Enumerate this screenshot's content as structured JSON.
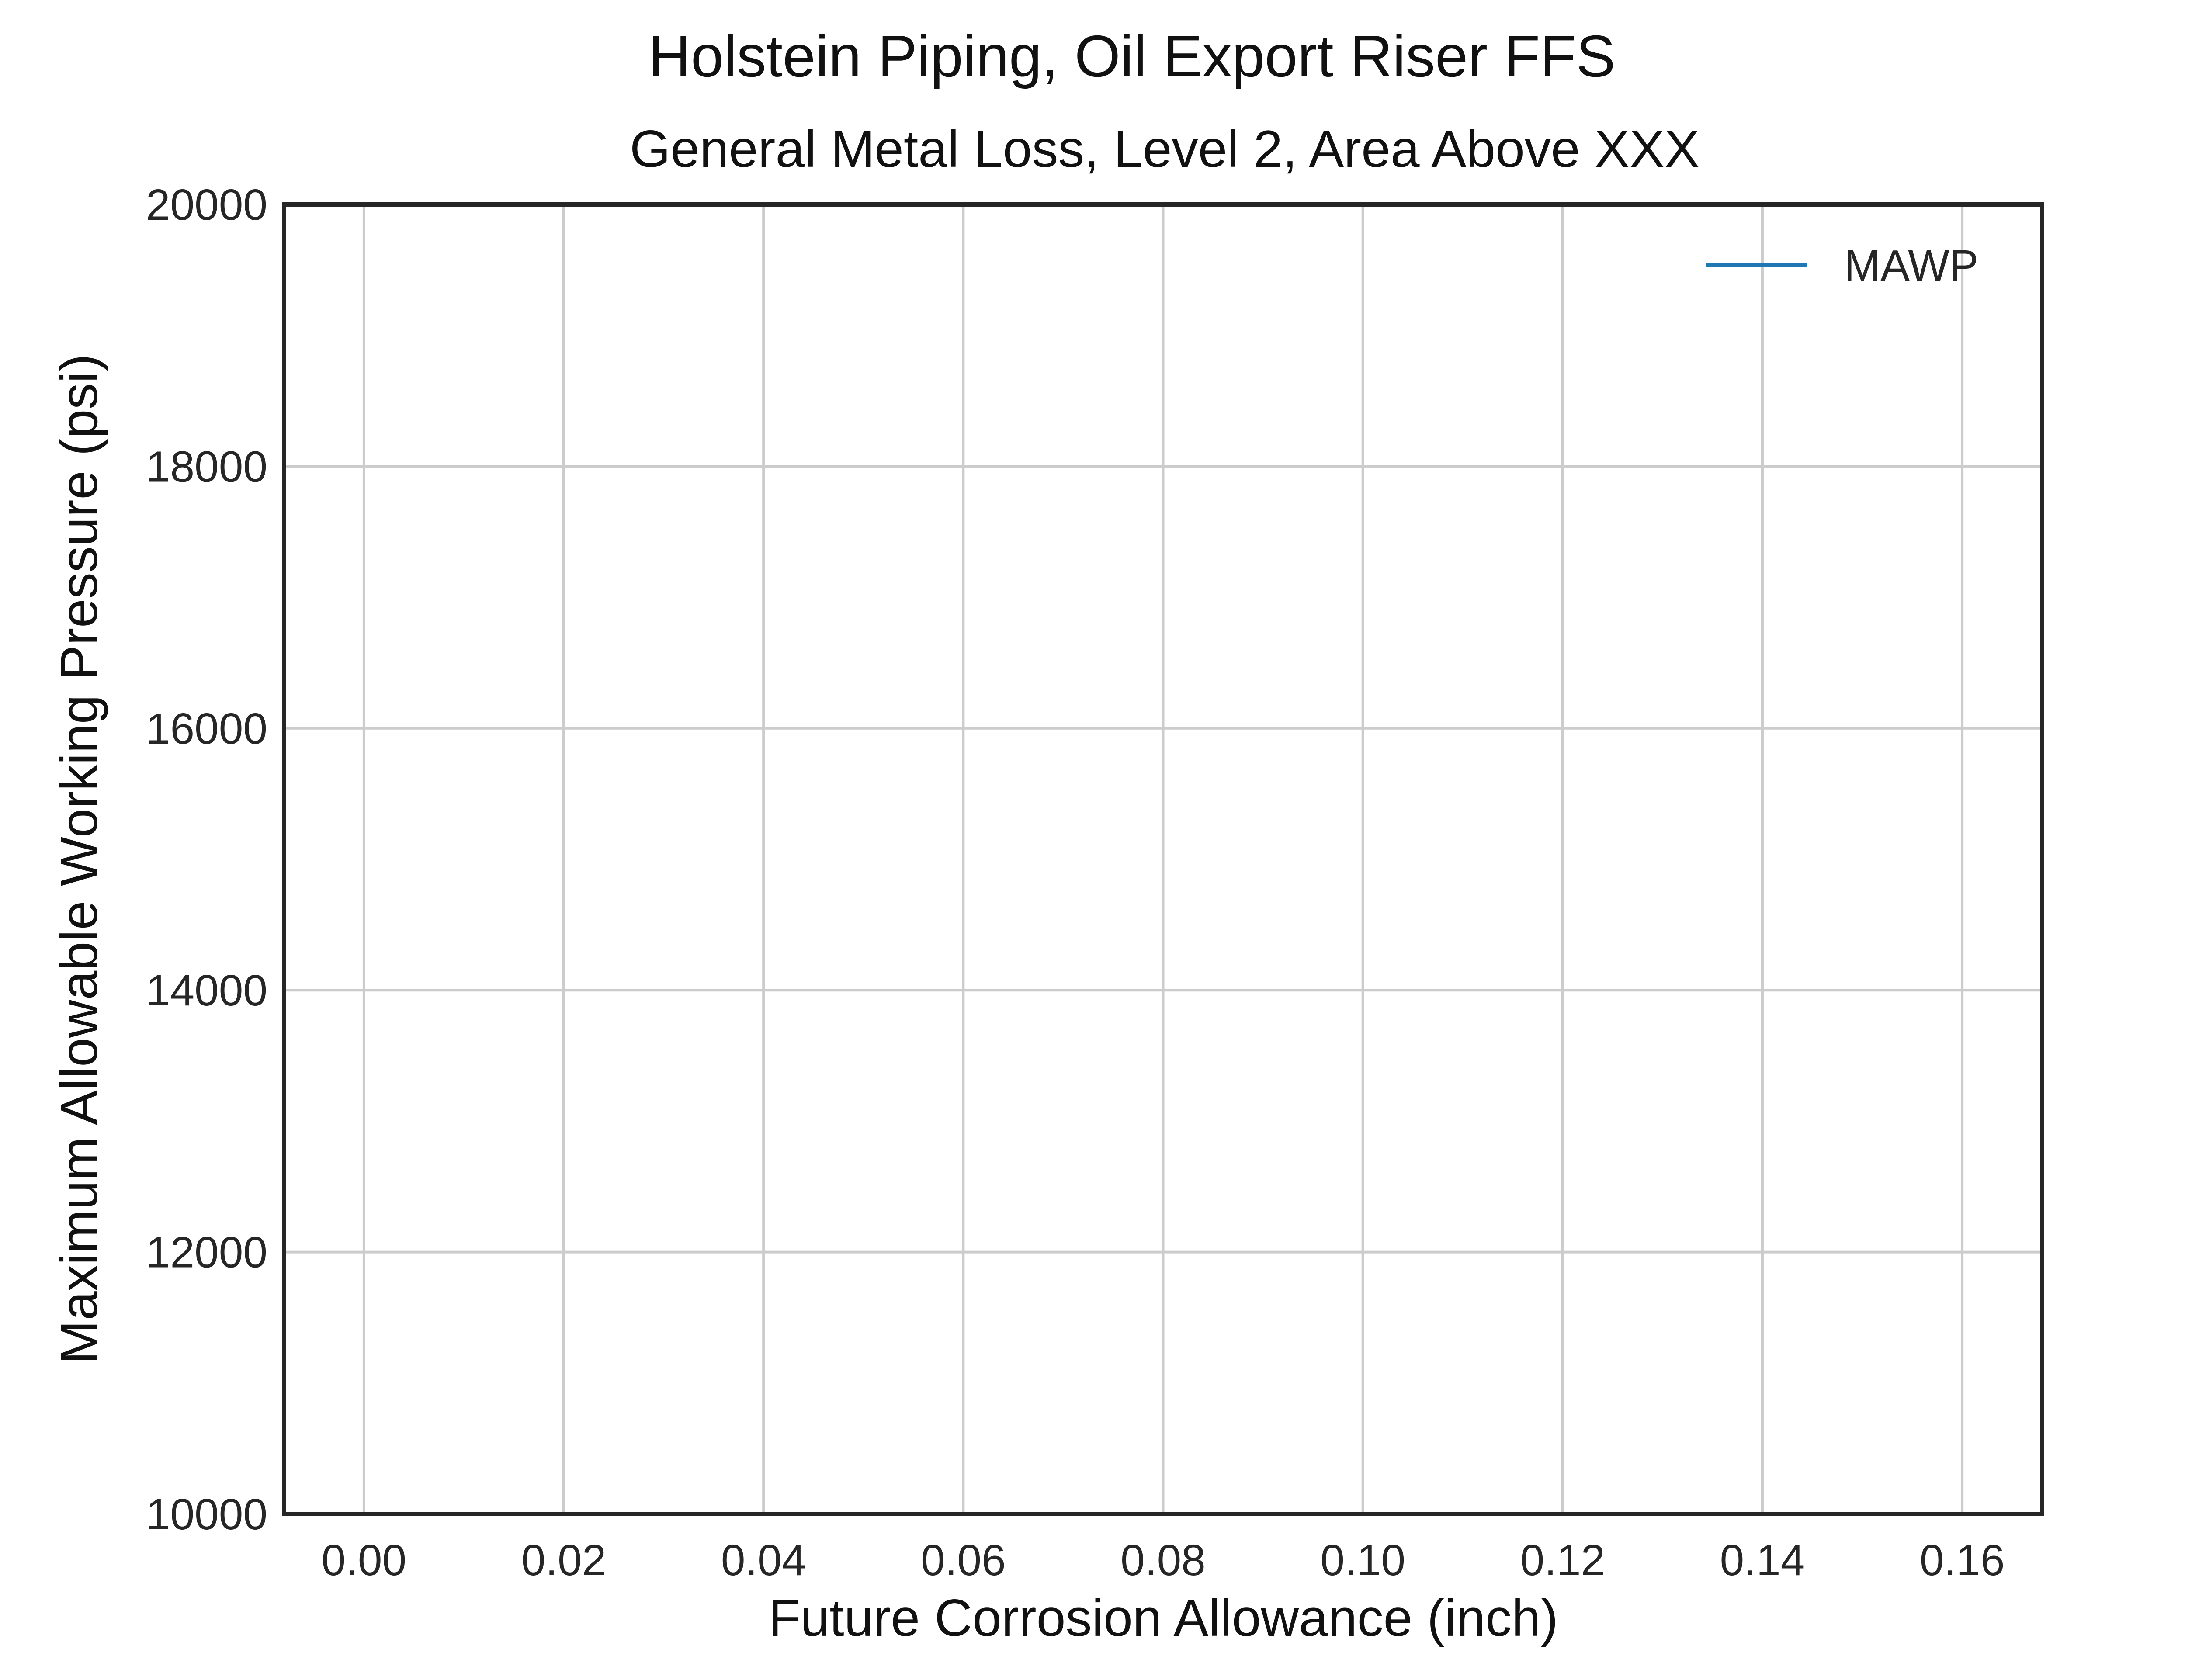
{
  "chart_data": {
    "type": "line",
    "suptitle": "Holstein Piping, Oil Export Riser FFS",
    "title": "General Metal Loss, Level 2, Area Above XXX",
    "xlabel": "Future Corrosion Allowance (inch)",
    "ylabel": "Maximum Allowable Working Pressure (psi)",
    "xlim": [
      -0.008,
      0.168
    ],
    "ylim": [
      10000,
      20000
    ],
    "xticks": [
      0.0,
      0.02,
      0.04,
      0.06,
      0.08,
      0.1,
      0.12,
      0.14,
      0.16
    ],
    "xtick_labels": [
      "0.00",
      "0.02",
      "0.04",
      "0.06",
      "0.08",
      "0.10",
      "0.12",
      "0.14",
      "0.16"
    ],
    "yticks": [
      10000,
      12000,
      14000,
      16000,
      18000,
      20000
    ],
    "ytick_labels": [
      "10000",
      "12000",
      "14000",
      "16000",
      "18000",
      "20000"
    ],
    "grid": true,
    "legend_position": "top-right",
    "series": [
      {
        "name": "MAWP",
        "color": "#1f77b4",
        "x": [],
        "y": []
      }
    ]
  }
}
